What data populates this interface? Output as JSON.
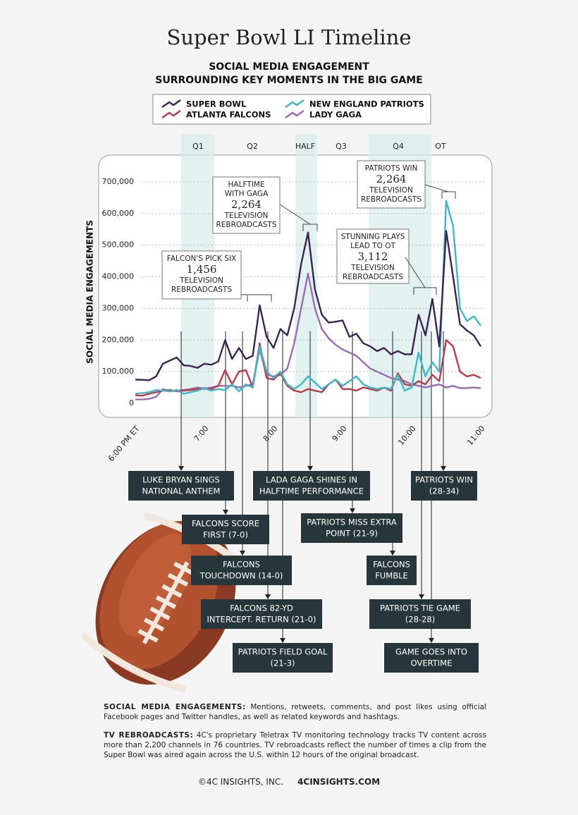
{
  "chart_data": {
    "type": "line",
    "title": "Super Bowl LI Timeline",
    "subtitle": [
      "SOCIAL MEDIA ENGAGEMENT",
      "SURROUNDING KEY MOMENTS IN THE BIG GAME"
    ],
    "y_label": "SOCIAL MEDIA ENGAGEMENTS",
    "legend": "top",
    "periods": [
      "Q1",
      "Q2",
      "HALF",
      "Q3",
      "Q4",
      "OT"
    ],
    "x": [
      18.0,
      18.1,
      18.2,
      18.3,
      18.4,
      18.5,
      18.6,
      18.7,
      18.8,
      18.9,
      19.0,
      19.1,
      19.2,
      19.3,
      19.4,
      19.5,
      19.6,
      19.7,
      19.8,
      19.9,
      20.0,
      20.1,
      20.2,
      20.3,
      20.4,
      20.5,
      20.6,
      20.7,
      20.8,
      20.9,
      21.0,
      21.1,
      21.2,
      21.3,
      21.4,
      21.5,
      21.6,
      21.7,
      21.8,
      21.9,
      22.0,
      22.1,
      22.2,
      22.3,
      22.4,
      22.5,
      22.6,
      22.7,
      22.8,
      22.9,
      23.0
    ],
    "xlim": [
      18,
      23
    ],
    "xticks": [
      {
        "value": 18,
        "label": "6:00 PM ET"
      },
      {
        "value": 19,
        "label": "7:00"
      },
      {
        "value": 20,
        "label": "8:00"
      },
      {
        "value": 21,
        "label": "9:00"
      },
      {
        "value": 22,
        "label": "10:00"
      },
      {
        "value": 23,
        "label": "11:00"
      }
    ],
    "ylim": [
      0,
      700000
    ],
    "yticks": [
      0,
      {
        "value": 100000,
        "label": "100,000"
      },
      {
        "value": 200000,
        "label": "200,000"
      },
      {
        "value": 300000,
        "label": "300,000"
      },
      {
        "value": 400000,
        "label": "400,000"
      },
      {
        "value": 500000,
        "label": "500,000"
      },
      {
        "value": 600000,
        "label": "600,000"
      },
      {
        "value": 700000,
        "label": "700,000"
      }
    ],
    "grid": true,
    "series": [
      {
        "name": "SUPER BOWL",
        "color": "#3d2352",
        "values": [
          75000,
          74000,
          73000,
          85000,
          125000,
          135000,
          145000,
          120000,
          118000,
          112000,
          125000,
          122000,
          132000,
          200000,
          140000,
          175000,
          140000,
          150000,
          310000,
          210000,
          175000,
          235000,
          215000,
          300000,
          440000,
          540000,
          360000,
          280000,
          255000,
          258000,
          262000,
          210000,
          220000,
          190000,
          180000,
          165000,
          175000,
          155000,
          165000,
          155000,
          155000,
          280000,
          215000,
          330000,
          180000,
          545000,
          400000,
          250000,
          230000,
          215000,
          180000
        ]
      },
      {
        "name": "NEW ENGLAND PATRIOTS",
        "color": "#3bb8c9",
        "values": [
          30000,
          32000,
          35000,
          42000,
          40000,
          38000,
          42000,
          30000,
          35000,
          40000,
          48000,
          40000,
          45000,
          42000,
          60000,
          38000,
          60000,
          50000,
          180000,
          100000,
          80000,
          100000,
          60000,
          45000,
          60000,
          85000,
          65000,
          45000,
          60000,
          75000,
          55000,
          70000,
          85000,
          60000,
          50000,
          45000,
          50000,
          45000,
          90000,
          40000,
          50000,
          160000,
          85000,
          130000,
          100000,
          640000,
          560000,
          300000,
          260000,
          275000,
          245000
        ]
      },
      {
        "name": "ATLANTA FALCONS",
        "color": "#c0394a",
        "values": [
          25000,
          24000,
          30000,
          35000,
          40000,
          42000,
          38000,
          40000,
          42000,
          45000,
          48000,
          45000,
          55000,
          105000,
          60000,
          100000,
          105000,
          50000,
          190000,
          80000,
          75000,
          95000,
          55000,
          40000,
          35000,
          45000,
          40000,
          35000,
          60000,
          75000,
          45000,
          45000,
          40000,
          50000,
          45000,
          40000,
          50000,
          40000,
          95000,
          60000,
          55000,
          70000,
          60000,
          90000,
          70000,
          200000,
          180000,
          100000,
          85000,
          90000,
          80000
        ]
      },
      {
        "name": "LADY GAGA",
        "color": "#9b6bb5",
        "values": [
          12000,
          12000,
          14000,
          20000,
          45000,
          38000,
          40000,
          42000,
          45000,
          50000,
          45000,
          50000,
          55000,
          55000,
          55000,
          50000,
          55000,
          60000,
          170000,
          90000,
          85000,
          90000,
          110000,
          190000,
          300000,
          410000,
          300000,
          235000,
          205000,
          185000,
          170000,
          160000,
          150000,
          130000,
          110000,
          100000,
          90000,
          80000,
          75000,
          70000,
          60000,
          55000,
          50000,
          55000,
          60000,
          50000,
          55000,
          48000,
          48000,
          50000,
          48000
        ]
      }
    ],
    "annotations": [
      {
        "title": [
          "FALCON'S PICK SIX"
        ],
        "count": "1,456",
        "unit": [
          "TELEVISION",
          "REBROADCASTS"
        ]
      },
      {
        "title": [
          "HALFTIME",
          "WITH GAGA"
        ],
        "count": "2,264",
        "unit": [
          "TELEVISION",
          "REBROADCASTS"
        ]
      },
      {
        "title": [
          "STUNNING PLAYS",
          "LEAD TO OT"
        ],
        "count": "3,112",
        "unit": [
          "TELEVISION",
          "REBROADCASTS"
        ]
      },
      {
        "title": [
          "PATRIOTS WIN"
        ],
        "count": "2,264",
        "unit": [
          "TELEVISION",
          "REBROADCASTS"
        ]
      }
    ]
  },
  "events": [
    [
      "LUKE BRYAN SINGS",
      "NATIONAL ANTHEM"
    ],
    [
      "LADA GAGA SHINES IN",
      "HALFTIME PERFORMANCE"
    ],
    [
      "PATRIOTS WIN",
      "(28-34)"
    ],
    [
      "FALCONS SCORE",
      "FIRST (7-0)"
    ],
    [
      "PATRIOTS MISS EXTRA",
      "POINT (21-9)"
    ],
    [
      "FALCONS",
      "TOUCHDOWN (14-0)"
    ],
    [
      "FALCONS",
      "FUMBLE"
    ],
    [
      "FALCONS  82-YD",
      "INTERCEPT. RETURN (21-0)"
    ],
    [
      "PATRIOTS TIE GAME",
      "(28-28)"
    ],
    [
      "PATRIOTS FIELD GOAL",
      "(21-3)"
    ],
    [
      "GAME GOES INTO",
      "OVERTIME"
    ]
  ],
  "notes": [
    {
      "lead": "SOCIAL MEDIA ENGAGEMENTS:",
      "text": "Mentions, retweets, comments, and post likes using official Facebook pages and Twitter handles, as well as related keywords and hashtags."
    },
    {
      "lead": "TV REBROADCASTS:",
      "text": "4C's proprietary Teletrax TV monitoring technology tracks TV content across more than 2,200 channels in 76 countries. TV rebroadcasts reflect the number of times a clip from the Super Bowl was aired again across the U.S. within 12 hours of the original broadcast."
    }
  ],
  "footer": {
    "company": "©4C INSIGHTS, INC.",
    "site": "4CINSIGHTS.COM"
  }
}
